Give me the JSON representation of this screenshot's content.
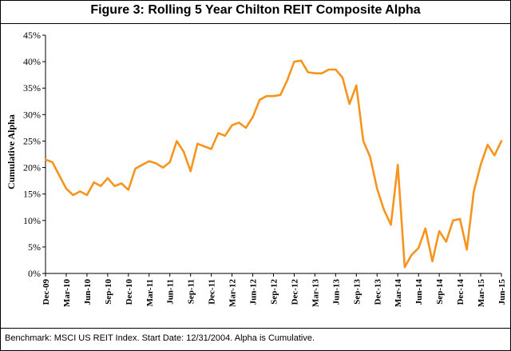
{
  "title": "Figure 3: Rolling 5 Year Chilton REIT Composite Alpha",
  "footnote": "Benchmark: MSCI US REIT Index.  Start Date: 12/31/2004.  Alpha is Cumulative.",
  "chart_data": {
    "type": "line",
    "title": "Figure 3: Rolling 5 Year Chilton REIT Composite Alpha",
    "xlabel": "",
    "ylabel": "Cumulative Alpha",
    "ylim": [
      0,
      45
    ],
    "yticks": [
      "0%",
      "5%",
      "10%",
      "15%",
      "20%",
      "25%",
      "30%",
      "35%",
      "40%",
      "45%"
    ],
    "x_tick_labels": [
      "Dec-09",
      "Mar-10",
      "Jun-10",
      "Sep-10",
      "Dec-10",
      "Mar-11",
      "Jun-11",
      "Sep-11",
      "Dec-11",
      "Mar-12",
      "Jun-12",
      "Sep-12",
      "Dec-12",
      "Mar-13",
      "Jun-13",
      "Sep-13",
      "Dec-13",
      "Mar-14",
      "Jun-14",
      "Sep-14",
      "Dec-14",
      "Mar-15",
      "Jun-15"
    ],
    "grid": false,
    "line_color": "#F7941D",
    "series": [
      {
        "x": [
          "Dec-09",
          "Jan-10",
          "Feb-10",
          "Mar-10",
          "Apr-10",
          "May-10",
          "Jun-10",
          "Jul-10",
          "Aug-10",
          "Sep-10",
          "Oct-10",
          "Nov-10",
          "Dec-10",
          "Jan-11",
          "Feb-11",
          "Mar-11",
          "Apr-11",
          "May-11",
          "Jun-11",
          "Jul-11",
          "Aug-11",
          "Sep-11",
          "Oct-11",
          "Nov-11",
          "Dec-11",
          "Jan-12",
          "Feb-12",
          "Mar-12",
          "Apr-12",
          "May-12",
          "Jun-12",
          "Jul-12",
          "Aug-12",
          "Sep-12",
          "Oct-12",
          "Nov-12",
          "Dec-12",
          "Jan-13",
          "Feb-13",
          "Mar-13",
          "Apr-13",
          "May-13",
          "Jun-13",
          "Jul-13",
          "Aug-13",
          "Sep-13",
          "Oct-13",
          "Nov-13",
          "Dec-13",
          "Jan-14",
          "Feb-14",
          "Mar-14",
          "Apr-14",
          "May-14",
          "Jun-14",
          "Jul-14",
          "Aug-14",
          "Sep-14",
          "Oct-14",
          "Nov-14",
          "Dec-14",
          "Jan-15",
          "Feb-15",
          "Mar-15",
          "Apr-15",
          "May-15",
          "Jun-15"
        ],
        "values": [
          21.5,
          21.0,
          18.5,
          16.0,
          14.8,
          15.5,
          14.8,
          17.2,
          16.5,
          18.0,
          16.5,
          17.0,
          15.8,
          19.8,
          20.5,
          21.2,
          20.8,
          20.0,
          21.0,
          25.0,
          23.0,
          19.3,
          24.5,
          24.0,
          23.5,
          26.5,
          26.0,
          28.0,
          28.5,
          27.5,
          29.5,
          32.8,
          33.5,
          33.5,
          33.7,
          36.5,
          40.0,
          40.2,
          38.0,
          37.8,
          37.8,
          38.5,
          38.5,
          37.0,
          32.0,
          35.5,
          25.0,
          22.0,
          16.0,
          12.0,
          9.2,
          20.5,
          1.2,
          3.5,
          4.8,
          8.5,
          2.3,
          8.0,
          6.0,
          10.0,
          10.3,
          4.5,
          15.5,
          20.5,
          24.3,
          22.3,
          25.0
        ]
      }
    ]
  }
}
